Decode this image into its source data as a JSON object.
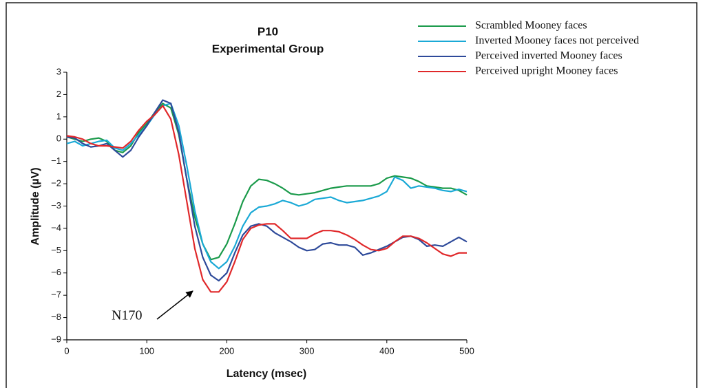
{
  "chart_data": {
    "type": "line",
    "title": "P10",
    "subtitle": "Experimental Group",
    "x_label": "Latency (msec)",
    "y_label": "Amplitude (µV)",
    "annotation": "N170",
    "x": [
      0,
      10,
      20,
      30,
      40,
      50,
      60,
      70,
      80,
      90,
      100,
      110,
      120,
      130,
      140,
      150,
      160,
      170,
      180,
      190,
      200,
      210,
      220,
      230,
      240,
      250,
      260,
      270,
      280,
      290,
      300,
      310,
      320,
      330,
      340,
      350,
      360,
      370,
      380,
      390,
      400,
      410,
      420,
      430,
      440,
      450,
      460,
      470,
      480,
      490,
      500
    ],
    "series": [
      {
        "name": "Scrambled Mooney faces",
        "color": "#1a9a4a",
        "values": [
          0.1,
          0,
          -0.1,
          0,
          0.05,
          -0.1,
          -0.5,
          -0.6,
          -0.3,
          0.3,
          0.7,
          1.2,
          1.6,
          1.4,
          0.2,
          -1.8,
          -3.5,
          -4.7,
          -5.4,
          -5.3,
          -4.7,
          -3.8,
          -2.8,
          -2.1,
          -1.8,
          -1.85,
          -2.0,
          -2.2,
          -2.45,
          -2.5,
          -2.45,
          -2.4,
          -2.3,
          -2.2,
          -2.15,
          -2.1,
          -2.1,
          -2.1,
          -2.1,
          -2.0,
          -1.75,
          -1.65,
          -1.7,
          -1.75,
          -1.9,
          -2.1,
          -2.15,
          -2.2,
          -2.2,
          -2.3,
          -2.5
        ]
      },
      {
        "name": "Inverted Mooney faces not perceived",
        "color": "#1aa9d6",
        "values": [
          -0.2,
          -0.1,
          -0.3,
          -0.2,
          -0.1,
          -0.05,
          -0.4,
          -0.5,
          -0.2,
          0.2,
          0.6,
          1.1,
          1.5,
          1.6,
          0.6,
          -1.2,
          -3.2,
          -4.7,
          -5.5,
          -5.8,
          -5.5,
          -4.8,
          -3.9,
          -3.3,
          -3.05,
          -3.0,
          -2.9,
          -2.75,
          -2.85,
          -3.0,
          -2.9,
          -2.7,
          -2.65,
          -2.6,
          -2.75,
          -2.85,
          -2.8,
          -2.75,
          -2.65,
          -2.55,
          -2.35,
          -1.7,
          -1.85,
          -2.2,
          -2.1,
          -2.15,
          -2.2,
          -2.3,
          -2.35,
          -2.25,
          -2.35
        ]
      },
      {
        "name": "Perceived inverted Mooney faces",
        "color": "#2e4a9a",
        "values": [
          0.1,
          0.05,
          -0.2,
          -0.35,
          -0.3,
          -0.2,
          -0.5,
          -0.8,
          -0.5,
          0.1,
          0.6,
          1.2,
          1.75,
          1.6,
          0.3,
          -1.8,
          -3.9,
          -5.3,
          -6.1,
          -6.35,
          -6.0,
          -5.1,
          -4.3,
          -3.9,
          -3.8,
          -3.9,
          -4.2,
          -4.4,
          -4.6,
          -4.85,
          -5.0,
          -4.95,
          -4.7,
          -4.65,
          -4.75,
          -4.75,
          -4.85,
          -5.2,
          -5.1,
          -4.95,
          -4.8,
          -4.6,
          -4.4,
          -4.35,
          -4.5,
          -4.8,
          -4.75,
          -4.8,
          -4.6,
          -4.4,
          -4.6
        ]
      },
      {
        "name": "Perceived upright Mooney faces",
        "color": "#e0282a",
        "values": [
          0.15,
          0.1,
          0,
          -0.2,
          -0.3,
          -0.3,
          -0.35,
          -0.4,
          -0.1,
          0.4,
          0.8,
          1.1,
          1.5,
          0.9,
          -0.7,
          -2.8,
          -4.9,
          -6.3,
          -6.85,
          -6.85,
          -6.4,
          -5.5,
          -4.5,
          -4.0,
          -3.85,
          -3.8,
          -3.8,
          -4.1,
          -4.45,
          -4.45,
          -4.45,
          -4.25,
          -4.1,
          -4.1,
          -4.15,
          -4.3,
          -4.5,
          -4.75,
          -4.95,
          -5.0,
          -4.9,
          -4.6,
          -4.35,
          -4.35,
          -4.45,
          -4.65,
          -4.9,
          -5.15,
          -5.25,
          -5.1,
          -5.1
        ]
      }
    ],
    "xlim": [
      0,
      500
    ],
    "xticks": [
      0,
      100,
      200,
      300,
      400,
      500
    ],
    "ylim": [
      -9,
      3
    ],
    "yticks": [
      {
        "value": -9,
        "label": "−9"
      },
      {
        "value": -8,
        "label": "−8"
      },
      {
        "value": -7,
        "label": "−7"
      },
      {
        "value": -6,
        "label": "−6"
      },
      {
        "value": -5,
        "label": "−5"
      },
      {
        "value": -4,
        "label": "−4"
      },
      {
        "value": -3,
        "label": "−3"
      },
      {
        "value": -2,
        "label": "−2"
      },
      {
        "value": -1,
        "label": "−1"
      },
      0,
      1,
      2,
      3
    ],
    "grid": false,
    "legend": "top-right"
  }
}
